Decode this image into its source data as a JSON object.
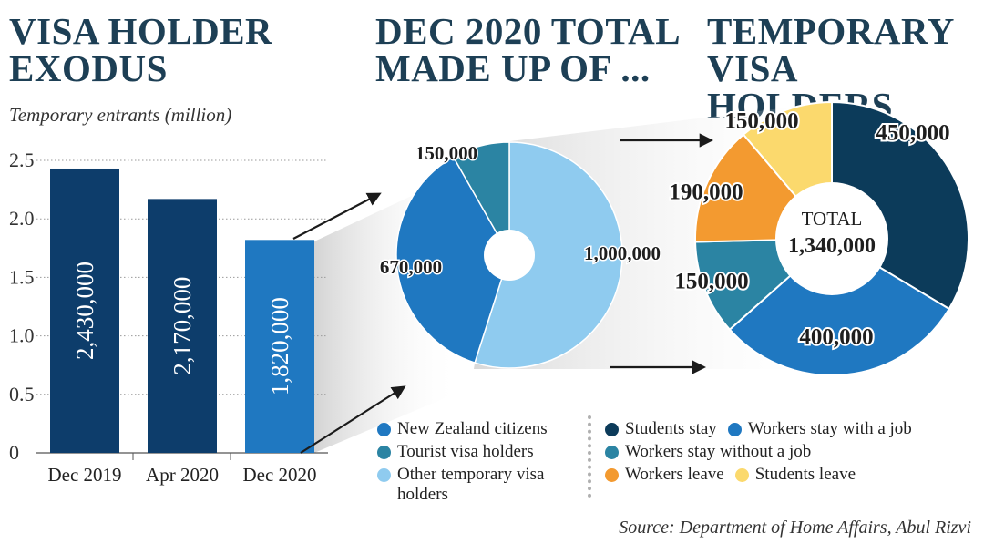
{
  "titles": {
    "left": [
      "VISA HOLDER",
      "EXODUS"
    ],
    "middle": [
      "DEC 2020 TOTAL",
      "MADE UP OF ..."
    ],
    "right": [
      "TEMPORARY",
      "VISA HOLDERS"
    ]
  },
  "subtitle": "Temporary entrants (million)",
  "source": "Source: Department of Home Affairs, Abul Rizvi",
  "colors": {
    "dark_navy": "#0c3b5a",
    "mid_blue": "#1f78c1",
    "teal": "#2b84a3",
    "light_blue": "#8fcbef",
    "orange": "#f39a30",
    "yellow": "#fbd96d"
  },
  "chart_data": [
    {
      "type": "bar",
      "title": "VISA HOLDER EXODUS",
      "ylabel": "Temporary entrants (million)",
      "categories": [
        "Dec 2019",
        "Apr 2020",
        "Dec 2020"
      ],
      "values": [
        2.43,
        2.17,
        1.82
      ],
      "data_labels": [
        "2,430,000",
        "2,170,000",
        "1,820,000"
      ],
      "yticks": [
        "0",
        "0.5",
        "1.0",
        "1.5",
        "2.0",
        "2.5"
      ],
      "ylim": [
        0,
        2.5
      ],
      "grid": true
    },
    {
      "type": "pie",
      "title": "DEC 2020 TOTAL MADE UP OF ...",
      "slices": [
        {
          "label": "Other temporary visa holders",
          "value": 1000000,
          "data_label": "1,000,000",
          "color": "#8fcbef"
        },
        {
          "label": "New Zealand citizens",
          "value": 670000,
          "data_label": "670,000",
          "color": "#1f78c1"
        },
        {
          "label": "Tourist visa holders",
          "value": 150000,
          "data_label": "150,000",
          "color": "#2b84a3"
        }
      ]
    },
    {
      "type": "pie",
      "title": "TEMPORARY VISA HOLDERS",
      "center_label": [
        "TOTAL",
        "1,340,000"
      ],
      "slices": [
        {
          "label": "Students stay",
          "value": 450000,
          "data_label": "450,000",
          "color": "#0c3b5a"
        },
        {
          "label": "Workers stay with a job",
          "value": 400000,
          "data_label": "400,000",
          "color": "#1f78c1"
        },
        {
          "label": "Workers stay without a job",
          "value": 150000,
          "data_label": "150,000",
          "color": "#2b84a3"
        },
        {
          "label": "Workers leave",
          "value": 190000,
          "data_label": "190,000",
          "color": "#f39a30"
        },
        {
          "label": "Students leave",
          "value": 150000,
          "data_label": "150,000",
          "color": "#fbd96d"
        }
      ]
    }
  ],
  "legend_middle": [
    {
      "label": "New Zealand citizens",
      "color": "#1f78c1"
    },
    {
      "label": "Tourist visa holders",
      "color": "#2b84a3"
    },
    {
      "label": "Other temporary visa holders",
      "color": "#8fcbef"
    }
  ],
  "legend_right": [
    [
      {
        "label": "Students stay",
        "color": "#0c3b5a"
      },
      {
        "label": "Workers stay with a job",
        "color": "#1f78c1"
      }
    ],
    [
      {
        "label": "Workers stay without a job",
        "color": "#2b84a3"
      }
    ],
    [
      {
        "label": "Workers leave",
        "color": "#f39a30"
      },
      {
        "label": "Students leave",
        "color": "#fbd96d"
      }
    ]
  ]
}
